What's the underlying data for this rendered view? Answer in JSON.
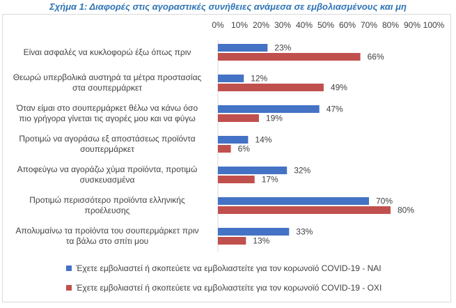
{
  "chart_data": {
    "type": "bar",
    "orientation": "horizontal",
    "title": "Σχήμα 1: Διαφορές στις αγοραστικές συνήθειες ανάμεσα σε εμβολιασμένους και μη",
    "xlim": [
      0,
      100
    ],
    "x_ticks": [
      "0%",
      "10%",
      "20%",
      "30%",
      "40%",
      "50%",
      "60%",
      "70%",
      "80%",
      "90%",
      "100%"
    ],
    "grid": false,
    "legend_position": "bottom",
    "categories": [
      "Είναι ασφαλές να κυκλοφορώ έξω όπως πριν",
      "Θεωρώ υπερβολικά αυστηρά τα μέτρα προστασίας στα σουπερμάρκετ",
      "Όταν είμαι στο σουπερμάρκετ θέλω να κάνω όσο πιο γρήγορα γίνεται τις αγορές μου και να φύγω",
      "Προτιμώ να αγοράσω εξ αποστάσεως προϊόντα σουπερμάρκετ",
      "Αποφεύγω να αγοράζω χύμα προϊόντα, προτιμώ συσκευασμένα",
      "Προτιμώ περισσότερο προϊόντα ελληνικής προέλευσης",
      "Απολυμαίνω τα προϊόντα του σουπερμάρκετ πριν τα βάλω στο σπίτι μου"
    ],
    "category_lines": [
      [
        "Είναι ασφαλές να κυκλοφορώ έξω όπως πριν"
      ],
      [
        "Θεωρώ υπερβολικά αυστηρά τα μέτρα προστασίας",
        "στα σουπερμάρκετ"
      ],
      [
        "Όταν είμαι στο σουπερμάρκετ θέλω να κάνω όσο",
        "πιο γρήγορα γίνεται τις αγορές μου και να φύγω"
      ],
      [
        "Προτιμώ να αγοράσω εξ αποστάσεως προϊόντα",
        "σουπερμάρκετ"
      ],
      [
        "Αποφεύγω να αγοράζω χύμα προϊόντα, προτιμώ",
        "συσκευασμένα"
      ],
      [
        "Προτιμώ περισσότερο προϊόντα ελληνικής",
        "προέλευσης"
      ],
      [
        "Απολυμαίνω τα προϊόντα του σουπερμάρκετ πριν",
        "τα βάλω στο σπίτι μου"
      ]
    ],
    "series": [
      {
        "name": "Έχετε εμβολιαστεί ή σκοπεύετε να εμβολιαστείτε για τον κορωνοϊό COVID-19 - ΝΑΙ",
        "color": "#4472c4",
        "values": [
          23,
          12,
          47,
          14,
          32,
          70,
          33
        ],
        "labels": [
          "23%",
          "12%",
          "47%",
          "14%",
          "32%",
          "70%",
          "33%"
        ]
      },
      {
        "name": "Έχετε εμβολιαστεί ή σκοπεύετε να εμβολιαστείτε για τον κορωνοϊό COVID-19 - ΟΧΙ",
        "color": "#c0504d",
        "values": [
          66,
          49,
          19,
          6,
          17,
          80,
          13
        ],
        "labels": [
          "66%",
          "49%",
          "19%",
          "6%",
          "17%",
          "80%",
          "13%"
        ]
      }
    ]
  }
}
